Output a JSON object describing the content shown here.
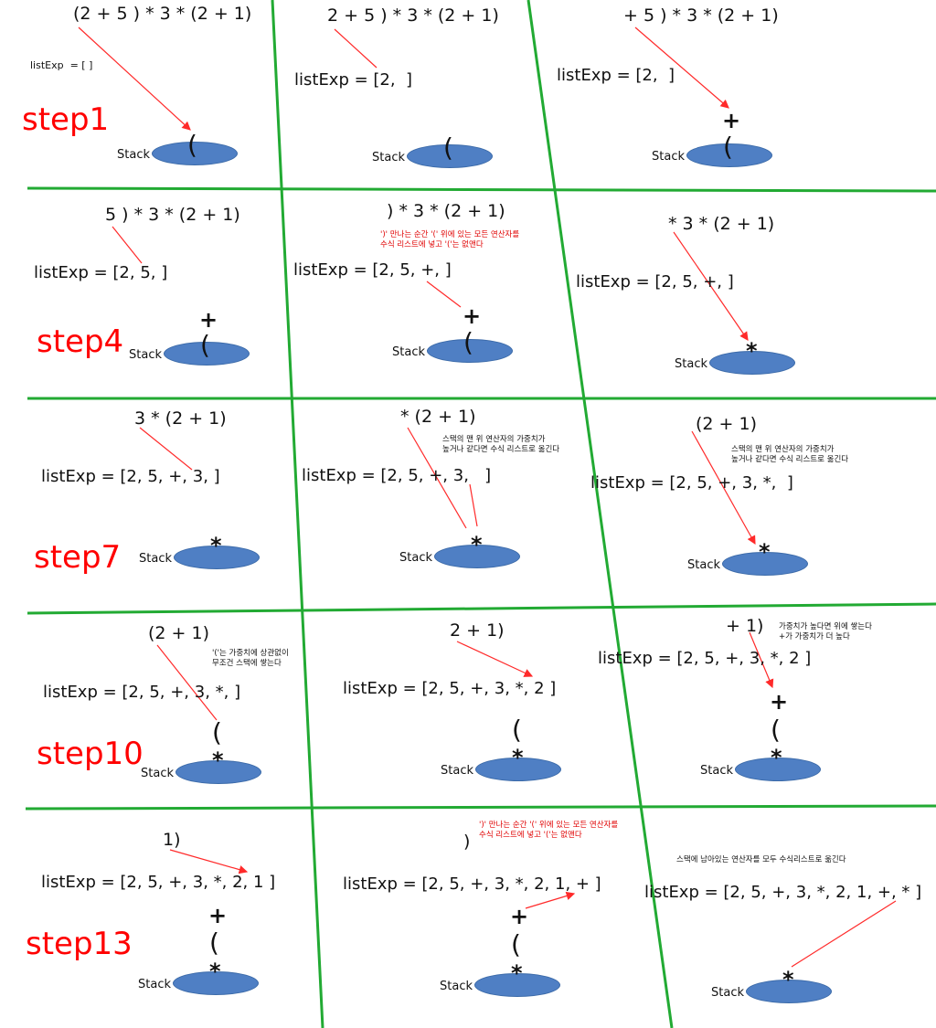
{
  "colors": {
    "grid_line": "#22aa33",
    "arrow": "#ff2a2a",
    "stack_fill": "#4f7fc4",
    "step_label": "#ff0000",
    "note_red": "#e00000"
  },
  "stack_label": "Stack",
  "cells": [
    {
      "expr": "(2 + 5 ) * 3 * (2 + 1)",
      "list": "listExp  = [ ]",
      "step": "step1",
      "stack": [
        "("
      ]
    },
    {
      "expr": "2 + 5 ) * 3 * (2 + 1)",
      "list": "listExp = [2,  ]",
      "stack": [
        "("
      ]
    },
    {
      "expr": "+ 5 ) * 3 * (2 + 1)",
      "list": "listExp = [2,  ]",
      "stack": [
        "(",
        "+"
      ]
    },
    {
      "expr": "5 ) * 3 * (2 + 1)",
      "list": "listExp = [2, 5, ]",
      "step": "step4",
      "stack": [
        "(",
        "+"
      ]
    },
    {
      "expr": ") * 3 * (2 + 1)",
      "list": "listExp = [2, 5, +, ]",
      "note": "')' 만나는 순간 '(' 위에 있는 모든 연산자를\n수식 리스트에 넣고 '('는 없앤다",
      "stack": [
        "(",
        "+"
      ]
    },
    {
      "expr": "* 3 * (2 + 1)",
      "list": "listExp = [2, 5, +, ]",
      "stack": [
        "*"
      ]
    },
    {
      "expr": "3 * (2 + 1)",
      "list": "listExp = [2, 5, +, 3, ]",
      "step": "step7",
      "stack": [
        "*"
      ]
    },
    {
      "expr": "* (2 + 1)",
      "list": "listExp = [2, 5, +, 3,   ]",
      "note": "스택의 맨 위 연산자의 가중치가\n높거나 같다면 수식 리스트로 옮긴다",
      "stack": [
        "*"
      ]
    },
    {
      "expr": "(2 + 1)",
      "list": "listExp = [2, 5, +, 3, *,  ]",
      "note": "스택의 맨 위 연산자의 가중치가\n높거나 같다면 수식 리스트로 옮긴다",
      "stack": [
        "*"
      ]
    },
    {
      "expr": "(2 + 1)",
      "list": "listExp = [2, 5, +, 3, *, ]",
      "step": "step10",
      "note": "'('는 가중치에 상관없이\n무조건 스택에 쌓는다",
      "stack": [
        "*",
        "("
      ]
    },
    {
      "expr": "2 + 1)",
      "list": "listExp = [2, 5, +, 3, *, 2 ]",
      "stack": [
        "*",
        "("
      ]
    },
    {
      "expr": "+ 1)",
      "list": "listExp = [2, 5, +, 3, *, 2 ]",
      "note": "가중치가 높다면 위에 쌓는다\n+가 가중치가 더 높다",
      "stack": [
        "*",
        "(",
        "+"
      ]
    },
    {
      "expr": "1)",
      "list": "listExp = [2, 5, +, 3, *, 2, 1 ]",
      "step": "step13",
      "stack": [
        "*",
        "(",
        "+"
      ]
    },
    {
      "expr": ")",
      "list": "listExp = [2, 5, +, 3, *, 2, 1, + ]",
      "note": "')' 만나는 순간 '(' 위에 있는 모든 연산자를\n수식 리스트에 넣고 '('는 없앤다",
      "stack": [
        "*",
        "(",
        "+"
      ]
    },
    {
      "expr": "",
      "list": "listExp = [2, 5, +, 3, *, 2, 1, +, * ]",
      "note": "스택에 남아있는 연산자를 모두 수식리스트로 옮긴다",
      "stack": [
        "*"
      ]
    }
  ]
}
